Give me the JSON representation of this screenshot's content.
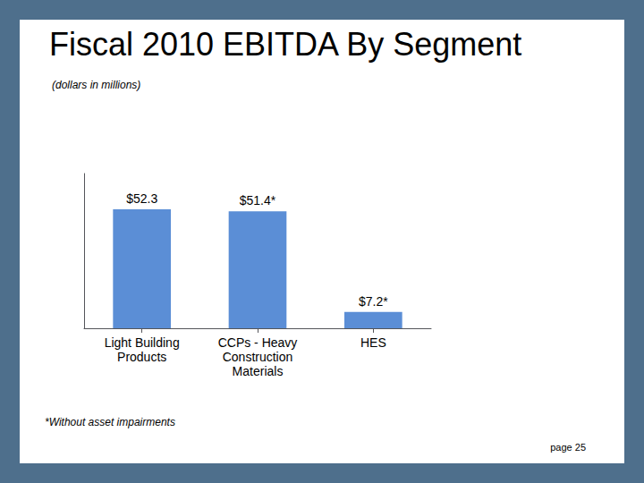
{
  "chart_data": {
    "type": "bar",
    "title": "Fiscal 2010 EBITDA By Segment",
    "subtitle": "(dollars in millions)",
    "annotations": [
      "*Without asset impairments",
      "page 25"
    ],
    "categories": [
      "Light Building\nProducts",
      "CCPs - Heavy\nConstruction\nMaterials",
      "HES"
    ],
    "values": [
      52.3,
      51.4,
      7.2
    ],
    "value_labels": [
      "$52.3",
      "$51.4*",
      "$7.2*"
    ],
    "data_labels": true,
    "color": "#5B8ED6",
    "ylim": [
      0,
      67.99
    ],
    "tick_labels": "x",
    "grid": false
  }
}
